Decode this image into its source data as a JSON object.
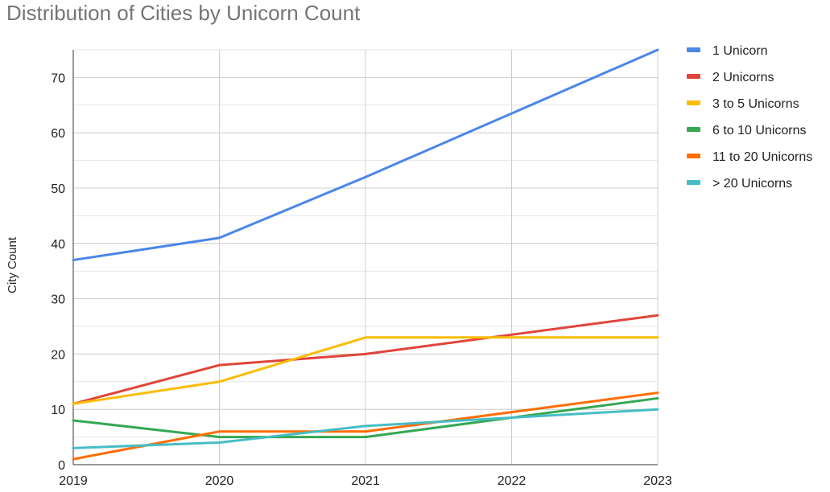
{
  "chart_data": {
    "type": "line",
    "title": "Distribution of Cities by Unicorn Count",
    "xlabel": "",
    "ylabel": "City Count",
    "x": [
      "2019",
      "2020",
      "2021",
      "2022",
      "2023"
    ],
    "xlim": [
      2019,
      2023
    ],
    "ylim": [
      0,
      75
    ],
    "yticks": [
      0,
      10,
      20,
      30,
      40,
      50,
      60,
      70
    ],
    "grid": true,
    "legend_position": "right",
    "series": [
      {
        "name": "1 Unicorn",
        "color": "#4a86e8",
        "values": [
          37,
          41,
          52,
          63.5,
          75
        ]
      },
      {
        "name": "2 Unicorns",
        "color": "#e0453a",
        "values": [
          11,
          18,
          20,
          23.5,
          27
        ]
      },
      {
        "name": "3 to 5 Unicorns",
        "color": "#fbbc04",
        "values": [
          11,
          15,
          23,
          23,
          23
        ]
      },
      {
        "name": "6 to 10 Unicorns",
        "color": "#34a853",
        "values": [
          8,
          5,
          5,
          8.5,
          12
        ]
      },
      {
        "name": "11 to 20 Unicorns",
        "color": "#ff6d01",
        "values": [
          1,
          6,
          6,
          9.5,
          13
        ]
      },
      {
        "name": "> 20 Unicorns",
        "color": "#46bdc6",
        "values": [
          3,
          4,
          7,
          8.5,
          10
        ]
      }
    ]
  }
}
